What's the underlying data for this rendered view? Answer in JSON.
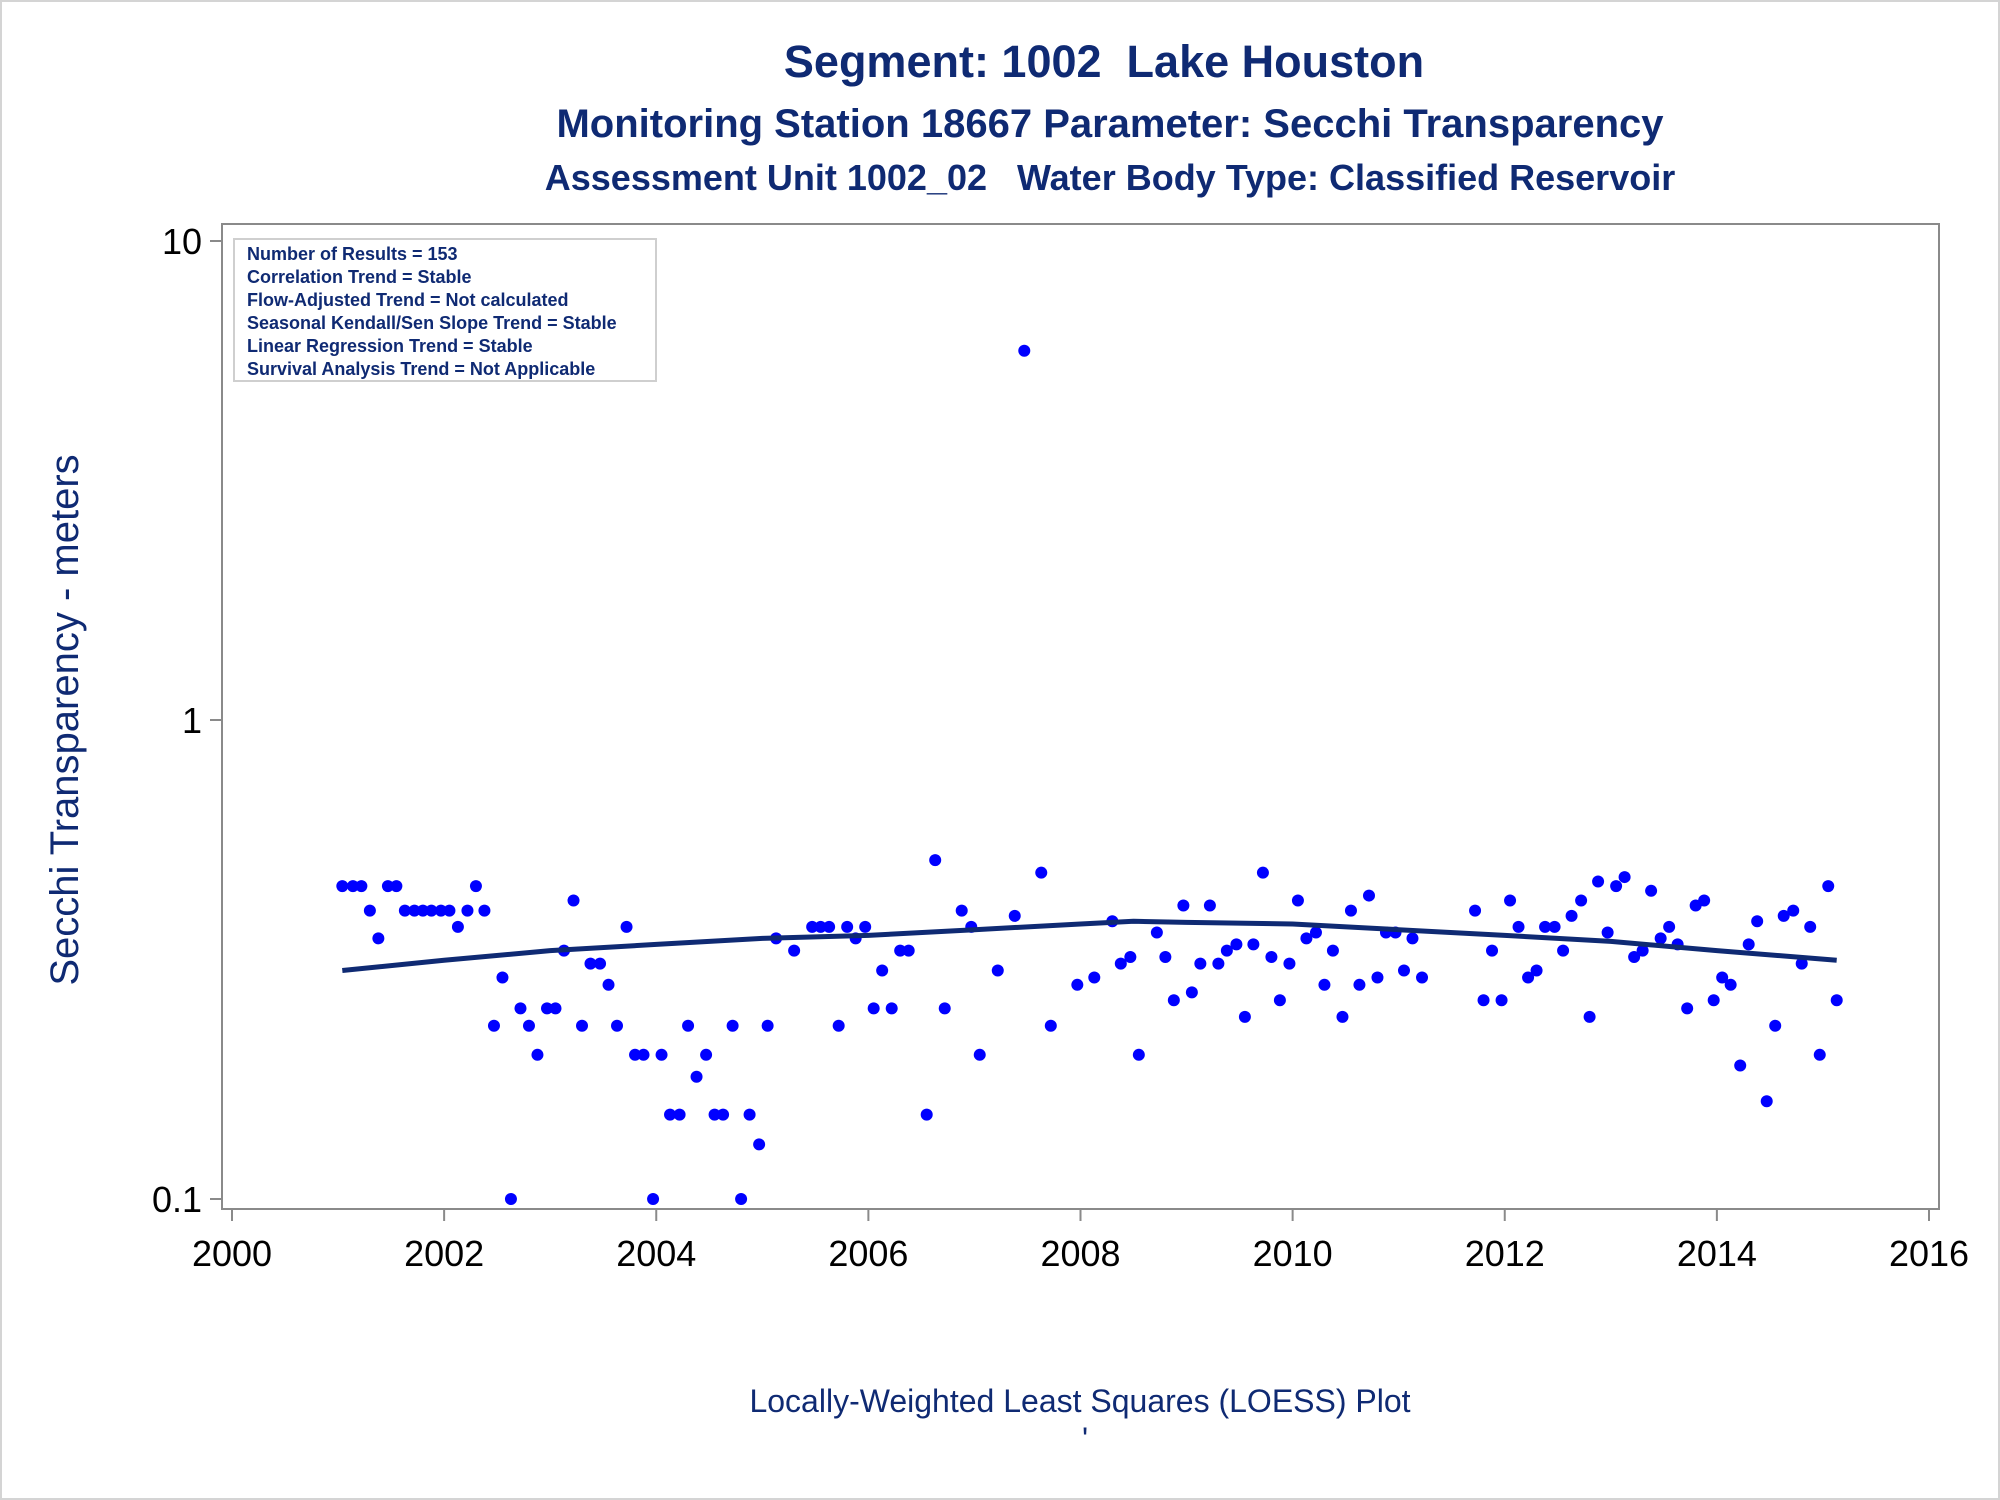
{
  "title": "Segment: 1002  Lake Houston",
  "subtitle": "Monitoring Station 18667 Parameter: Secchi Transparency",
  "subtitle2": "Assessment Unit 1002_02   Water Body Type: Classified Reservoir",
  "footnote": "Locally-Weighted Least Squares (LOESS) Plot",
  "footnote_mark": "'",
  "stats": [
    "Number of Results = 153",
    "Correlation Trend = Stable",
    "Flow-Adjusted Trend = Not calculated",
    "Seasonal Kendall/Sen Slope Trend = Stable",
    "Linear Regression Trend = Stable",
    "Survival Analysis Trend = Not Applicable"
  ],
  "colors": {
    "points": "#0000ff",
    "loess": "#0f2a73",
    "text": "#0f2a73",
    "axis": "#888888"
  },
  "chart_data": {
    "type": "scatter",
    "title": "Segment: 1002  Lake Houston",
    "xlabel": "",
    "ylabel": "Secchi Transparency - meters",
    "yscale": "log",
    "xlim": [
      2000,
      2016
    ],
    "ylim": [
      0.1,
      10
    ],
    "xticks": [
      "2000",
      "2002",
      "2004",
      "2006",
      "2008",
      "2010",
      "2012",
      "2014",
      "2016"
    ],
    "yticks": [
      "0.1",
      "1",
      "10"
    ],
    "grid": false,
    "points": [
      [
        2001.04,
        0.45
      ],
      [
        2001.14,
        0.45
      ],
      [
        2001.22,
        0.45
      ],
      [
        2001.3,
        0.4
      ],
      [
        2001.38,
        0.35
      ],
      [
        2001.47,
        0.45
      ],
      [
        2001.55,
        0.45
      ],
      [
        2001.63,
        0.4
      ],
      [
        2001.72,
        0.4
      ],
      [
        2001.8,
        0.4
      ],
      [
        2001.88,
        0.4
      ],
      [
        2001.97,
        0.4
      ],
      [
        2002.05,
        0.4
      ],
      [
        2002.13,
        0.37
      ],
      [
        2002.22,
        0.4
      ],
      [
        2002.3,
        0.45
      ],
      [
        2002.38,
        0.4
      ],
      [
        2002.47,
        0.23
      ],
      [
        2002.55,
        0.29
      ],
      [
        2002.63,
        0.1
      ],
      [
        2002.72,
        0.25
      ],
      [
        2002.8,
        0.23
      ],
      [
        2002.88,
        0.2
      ],
      [
        2002.97,
        0.25
      ],
      [
        2003.05,
        0.25
      ],
      [
        2003.13,
        0.33
      ],
      [
        2003.22,
        0.42
      ],
      [
        2003.3,
        0.23
      ],
      [
        2003.38,
        0.31
      ],
      [
        2003.47,
        0.31
      ],
      [
        2003.55,
        0.28
      ],
      [
        2003.63,
        0.23
      ],
      [
        2003.72,
        0.37
      ],
      [
        2003.8,
        0.2
      ],
      [
        2003.88,
        0.2
      ],
      [
        2003.97,
        0.1
      ],
      [
        2004.05,
        0.2
      ],
      [
        2004.13,
        0.15
      ],
      [
        2004.22,
        0.15
      ],
      [
        2004.3,
        0.23
      ],
      [
        2004.38,
        0.18
      ],
      [
        2004.47,
        0.2
      ],
      [
        2004.55,
        0.15
      ],
      [
        2004.63,
        0.15
      ],
      [
        2004.72,
        0.23
      ],
      [
        2004.8,
        0.1
      ],
      [
        2004.88,
        0.15
      ],
      [
        2004.97,
        0.13
      ],
      [
        2005.05,
        0.23
      ],
      [
        2005.13,
        0.35
      ],
      [
        2005.3,
        0.33
      ],
      [
        2005.47,
        0.37
      ],
      [
        2005.55,
        0.37
      ],
      [
        2005.63,
        0.37
      ],
      [
        2005.72,
        0.23
      ],
      [
        2005.8,
        0.37
      ],
      [
        2005.88,
        0.35
      ],
      [
        2005.97,
        0.37
      ],
      [
        2006.05,
        0.25
      ],
      [
        2006.13,
        0.3
      ],
      [
        2006.22,
        0.25
      ],
      [
        2006.3,
        0.33
      ],
      [
        2006.38,
        0.33
      ],
      [
        2006.55,
        0.15
      ],
      [
        2006.63,
        0.51
      ],
      [
        2006.72,
        0.25
      ],
      [
        2006.88,
        0.4
      ],
      [
        2006.97,
        0.37
      ],
      [
        2007.05,
        0.2
      ],
      [
        2007.22,
        0.3
      ],
      [
        2007.38,
        0.39
      ],
      [
        2007.63,
        0.48
      ],
      [
        2007.47,
        5.9
      ],
      [
        2007.72,
        0.23
      ],
      [
        2007.97,
        0.28
      ],
      [
        2008.13,
        0.29
      ],
      [
        2008.3,
        0.38
      ],
      [
        2008.38,
        0.31
      ],
      [
        2008.47,
        0.32
      ],
      [
        2008.55,
        0.2
      ],
      [
        2008.72,
        0.36
      ],
      [
        2008.8,
        0.32
      ],
      [
        2008.88,
        0.26
      ],
      [
        2008.97,
        0.41
      ],
      [
        2009.05,
        0.27
      ],
      [
        2009.13,
        0.31
      ],
      [
        2009.22,
        0.41
      ],
      [
        2009.3,
        0.31
      ],
      [
        2009.38,
        0.33
      ],
      [
        2009.47,
        0.34
      ],
      [
        2009.55,
        0.24
      ],
      [
        2009.63,
        0.34
      ],
      [
        2009.72,
        0.48
      ],
      [
        2009.8,
        0.32
      ],
      [
        2009.88,
        0.26
      ],
      [
        2009.97,
        0.31
      ],
      [
        2010.05,
        0.42
      ],
      [
        2010.13,
        0.35
      ],
      [
        2010.22,
        0.36
      ],
      [
        2010.3,
        0.28
      ],
      [
        2010.38,
        0.33
      ],
      [
        2010.47,
        0.24
      ],
      [
        2010.55,
        0.4
      ],
      [
        2010.63,
        0.28
      ],
      [
        2010.72,
        0.43
      ],
      [
        2010.8,
        0.29
      ],
      [
        2010.88,
        0.36
      ],
      [
        2010.97,
        0.36
      ],
      [
        2011.05,
        0.3
      ],
      [
        2011.13,
        0.35
      ],
      [
        2011.22,
        0.29
      ],
      [
        2011.72,
        0.4
      ],
      [
        2011.8,
        0.26
      ],
      [
        2011.88,
        0.33
      ],
      [
        2011.97,
        0.26
      ],
      [
        2012.05,
        0.42
      ],
      [
        2012.13,
        0.37
      ],
      [
        2012.22,
        0.29
      ],
      [
        2012.3,
        0.3
      ],
      [
        2012.38,
        0.37
      ],
      [
        2012.47,
        0.37
      ],
      [
        2012.55,
        0.33
      ],
      [
        2012.63,
        0.39
      ],
      [
        2012.72,
        0.42
      ],
      [
        2012.8,
        0.24
      ],
      [
        2012.88,
        0.46
      ],
      [
        2012.97,
        0.36
      ],
      [
        2013.05,
        0.45
      ],
      [
        2013.13,
        0.47
      ],
      [
        2013.22,
        0.32
      ],
      [
        2013.3,
        0.33
      ],
      [
        2013.38,
        0.44
      ],
      [
        2013.47,
        0.35
      ],
      [
        2013.55,
        0.37
      ],
      [
        2013.63,
        0.34
      ],
      [
        2013.72,
        0.25
      ],
      [
        2013.8,
        0.41
      ],
      [
        2013.88,
        0.42
      ],
      [
        2013.97,
        0.26
      ],
      [
        2014.05,
        0.29
      ],
      [
        2014.13,
        0.28
      ],
      [
        2014.22,
        0.19
      ],
      [
        2014.3,
        0.34
      ],
      [
        2014.38,
        0.38
      ],
      [
        2014.47,
        0.16
      ],
      [
        2014.55,
        0.23
      ],
      [
        2014.63,
        0.39
      ],
      [
        2014.72,
        0.4
      ],
      [
        2014.8,
        0.31
      ],
      [
        2014.88,
        0.37
      ],
      [
        2014.97,
        0.2
      ],
      [
        2015.05,
        0.45
      ],
      [
        2015.13,
        0.26
      ]
    ],
    "loess": [
      [
        2001.04,
        0.3
      ],
      [
        2002.0,
        0.315
      ],
      [
        2003.0,
        0.33
      ],
      [
        2004.0,
        0.34
      ],
      [
        2005.0,
        0.35
      ],
      [
        2006.0,
        0.355
      ],
      [
        2007.0,
        0.365
      ],
      [
        2008.0,
        0.375
      ],
      [
        2008.5,
        0.38
      ],
      [
        2009.0,
        0.378
      ],
      [
        2010.0,
        0.375
      ],
      [
        2011.0,
        0.365
      ],
      [
        2012.0,
        0.355
      ],
      [
        2013.0,
        0.345
      ],
      [
        2014.0,
        0.33
      ],
      [
        2015.13,
        0.315
      ]
    ]
  }
}
